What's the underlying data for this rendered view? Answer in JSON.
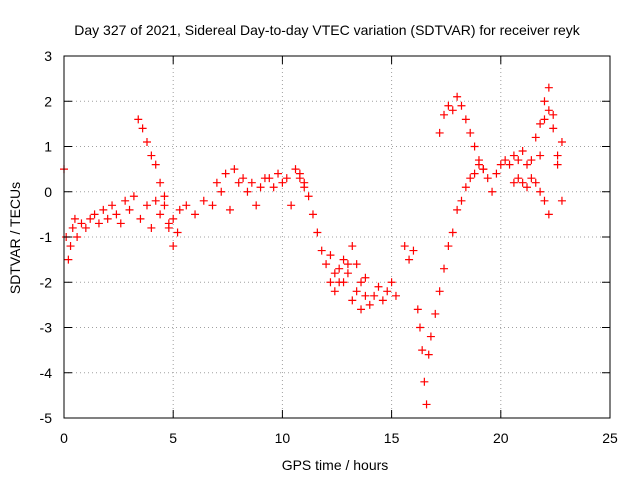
{
  "chart_data": {
    "type": "scatter",
    "title": "Day 327 of 2021, Sidereal Day-to-day VTEC variation (SDTVAR) for receiver reyk",
    "xlabel": "GPS time / hours",
    "ylabel": "SDTVAR / TECUs",
    "xlim": [
      0,
      25
    ],
    "ylim": [
      -5,
      3
    ],
    "xticks": [
      0,
      5,
      10,
      15,
      20,
      25
    ],
    "yticks": [
      -5,
      -4,
      -3,
      -2,
      -1,
      0,
      1,
      2,
      3
    ],
    "grid": true,
    "marker": "+",
    "marker_color": "#ff0000",
    "series": [
      {
        "x": [
          0.0,
          0.1,
          0.2,
          0.3,
          0.4,
          0.5,
          0.6,
          0.8,
          1.0,
          1.2,
          1.4,
          1.6,
          1.8,
          2.0,
          2.2,
          2.4,
          2.6,
          2.8,
          3.0,
          3.2,
          3.5,
          3.8,
          4.0,
          4.2,
          4.4,
          4.6,
          4.8,
          5.0,
          5.3,
          5.6,
          6.0,
          6.4,
          6.8,
          7.2,
          7.6,
          8.0,
          8.4,
          8.8,
          9.2,
          9.6,
          10.0,
          10.4,
          10.8,
          11.0,
          11.2,
          11.4,
          11.6,
          11.8,
          12.0,
          12.2,
          12.4,
          12.6,
          12.8,
          13.0,
          13.2,
          13.4,
          13.6,
          13.8,
          14.0,
          14.2,
          14.4,
          14.6,
          14.8,
          15.0,
          15.2
        ],
        "y": [
          0.5,
          -1.0,
          -1.5,
          -1.2,
          -0.8,
          -0.6,
          -1.0,
          -0.7,
          -0.8,
          -0.6,
          -0.5,
          -0.7,
          -0.4,
          -0.6,
          -0.3,
          -0.5,
          -0.7,
          -0.2,
          -0.4,
          -0.1,
          -0.6,
          -0.3,
          -0.8,
          -0.2,
          -0.5,
          -0.1,
          -0.7,
          -0.6,
          -0.4,
          -0.3,
          -0.5,
          -0.2,
          -0.3,
          0.0,
          -0.4,
          0.2,
          0.0,
          -0.3,
          0.3,
          0.1,
          0.2,
          -0.3,
          0.3,
          0.1,
          -0.1,
          -0.5,
          -0.9,
          -1.3,
          -1.6,
          -2.0,
          -2.2,
          -1.7,
          -2.0,
          -1.6,
          -2.4,
          -2.2,
          -2.6,
          -2.3,
          -2.5,
          -2.3,
          -2.1,
          -2.4,
          -2.2,
          -2.0,
          -2.3
        ]
      },
      {
        "x": [
          3.4,
          3.6,
          3.8,
          4.0,
          4.2,
          4.4,
          4.6,
          4.8,
          5.0,
          5.2
        ],
        "y": [
          1.6,
          1.4,
          1.1,
          0.8,
          0.6,
          0.2,
          -0.3,
          -0.8,
          -1.2,
          -0.9
        ]
      },
      {
        "x": [
          7.0,
          7.4,
          7.8,
          8.2,
          8.6,
          9.0,
          9.4,
          9.8,
          10.2,
          10.6,
          10.8,
          11.0
        ],
        "y": [
          0.2,
          0.4,
          0.5,
          0.3,
          0.2,
          0.1,
          0.3,
          0.4,
          0.3,
          0.5,
          0.4,
          0.2
        ]
      },
      {
        "x": [
          12.2,
          12.4,
          12.6,
          12.8,
          13.0,
          13.2,
          13.4,
          13.6,
          13.8
        ],
        "y": [
          -1.4,
          -1.8,
          -2.0,
          -1.5,
          -1.8,
          -1.2,
          -1.6,
          -2.0,
          -1.9
        ]
      },
      {
        "x": [
          15.6,
          15.8,
          16.0,
          16.2,
          16.3,
          16.4,
          16.5,
          16.6,
          16.7,
          16.8,
          17.0,
          17.2,
          17.4,
          17.6,
          17.8,
          18.0,
          18.2,
          18.4,
          18.6,
          18.8,
          19.0,
          19.2,
          19.4,
          19.6,
          19.8,
          20.0,
          20.2,
          20.4,
          20.6,
          20.8,
          21.0,
          21.2,
          21.4,
          21.6,
          21.8,
          22.0,
          22.2,
          22.4,
          22.6,
          22.8
        ],
        "y": [
          -1.2,
          -1.5,
          -1.3,
          -2.6,
          -3.0,
          -3.5,
          -4.2,
          -4.7,
          -3.6,
          -3.2,
          -2.7,
          -2.2,
          -1.7,
          -1.2,
          -0.9,
          -0.4,
          -0.2,
          0.1,
          0.3,
          0.4,
          0.6,
          0.5,
          0.3,
          0.0,
          0.4,
          0.6,
          0.7,
          0.6,
          0.8,
          0.7,
          0.9,
          0.6,
          0.7,
          1.2,
          1.5,
          2.0,
          1.8,
          1.4,
          0.8,
          1.1
        ]
      },
      {
        "x": [
          17.2,
          17.4,
          17.6,
          17.8,
          18.0,
          18.2,
          18.4,
          18.6,
          18.8,
          19.0,
          19.2
        ],
        "y": [
          1.3,
          1.7,
          1.9,
          1.8,
          2.1,
          1.9,
          1.6,
          1.3,
          1.0,
          0.7,
          0.5
        ]
      },
      {
        "x": [
          20.6,
          20.8,
          21.0,
          21.2,
          21.4,
          21.6,
          21.8,
          22.0,
          22.2
        ],
        "y": [
          0.2,
          0.3,
          0.2,
          0.1,
          0.3,
          0.2,
          0.0,
          -0.2,
          -0.5
        ]
      },
      {
        "x": [
          21.8,
          22.0,
          22.2,
          22.4,
          22.6,
          22.8
        ],
        "y": [
          0.8,
          1.6,
          2.3,
          1.7,
          0.6,
          -0.2
        ]
      }
    ]
  }
}
